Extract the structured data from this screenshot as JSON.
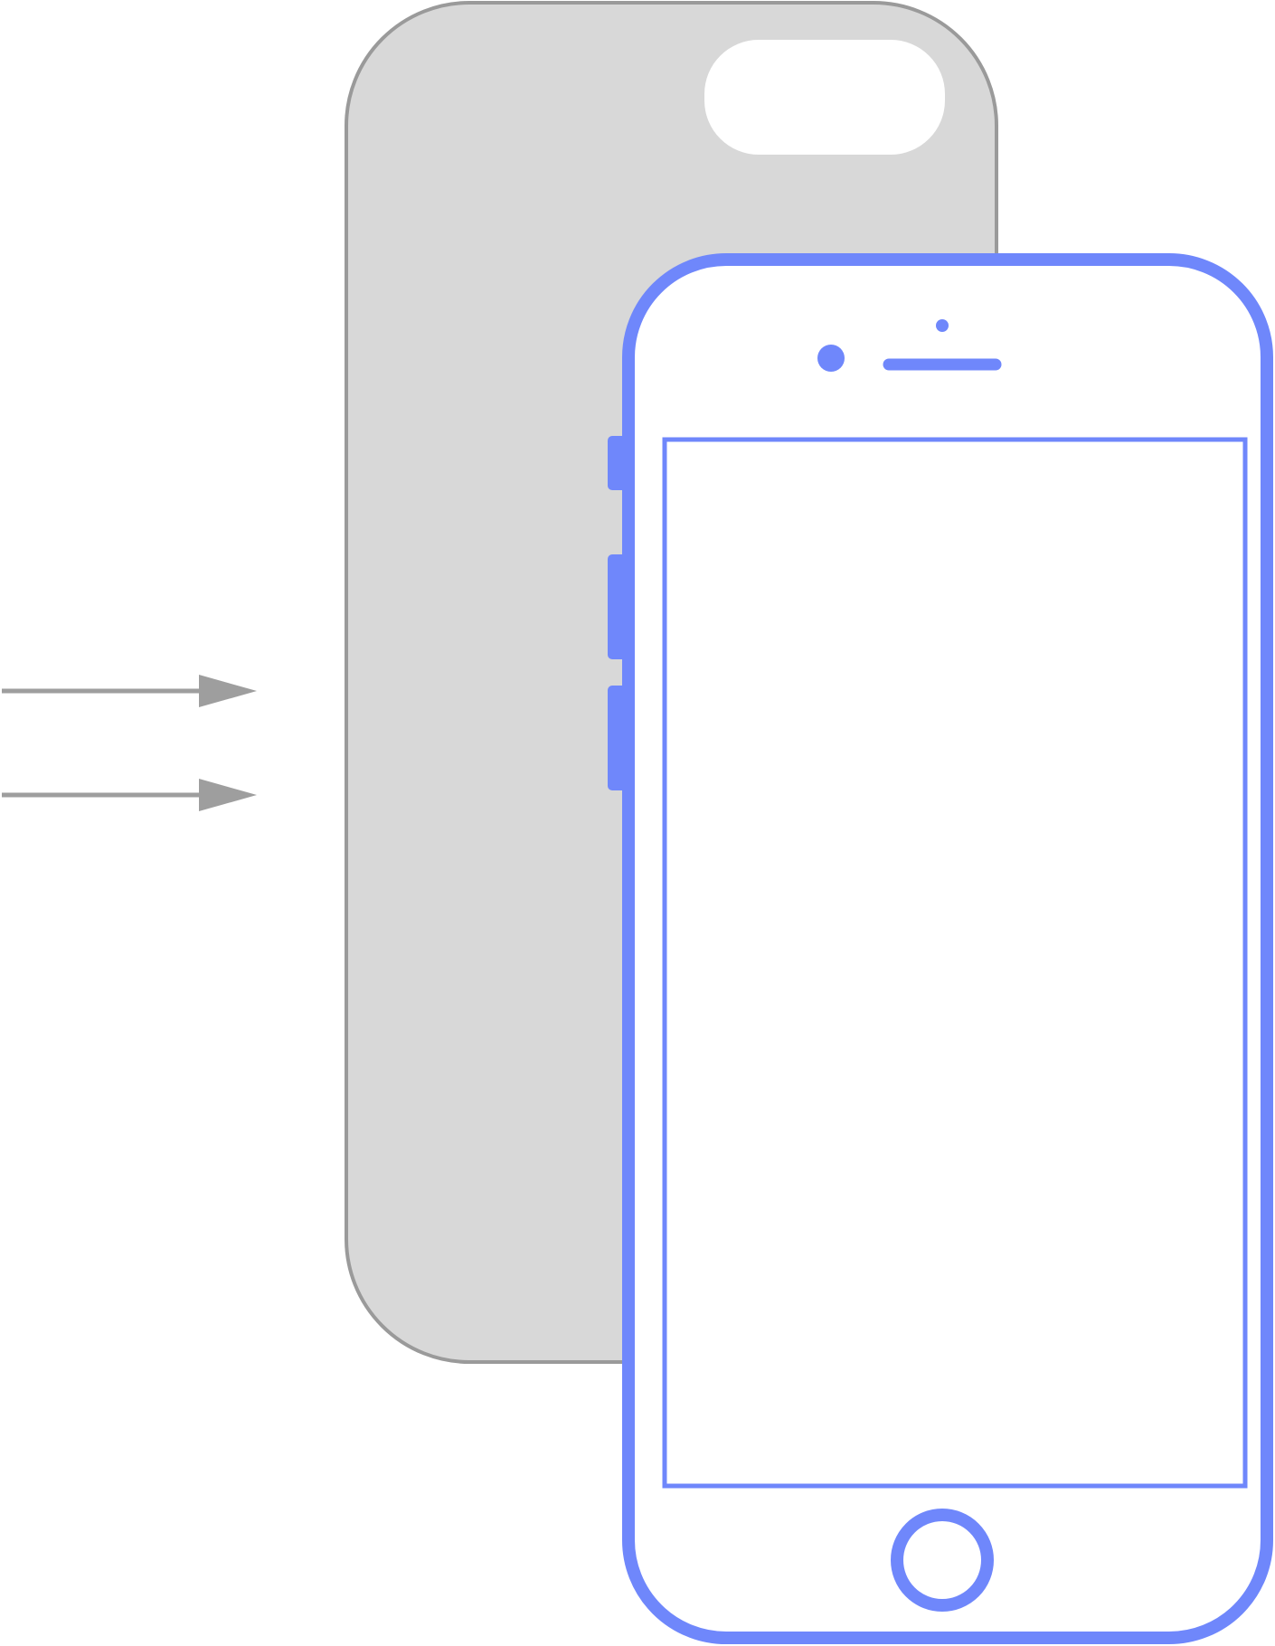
{
  "colors": {
    "background": "#ffffff",
    "case_fill": "#d8d8d8",
    "case_outline": "#9a9a9a",
    "arrow": "#9e9e9e",
    "phone_outline": "#6f87fb",
    "phone_fill": "#ffffff",
    "camera_cutout": "#ffffff"
  },
  "icons": {
    "case": "phone-case-back-icon",
    "phone": "smartphone-front-icon",
    "arrow": "right-arrow-icon",
    "home_button": "home-button-icon"
  }
}
